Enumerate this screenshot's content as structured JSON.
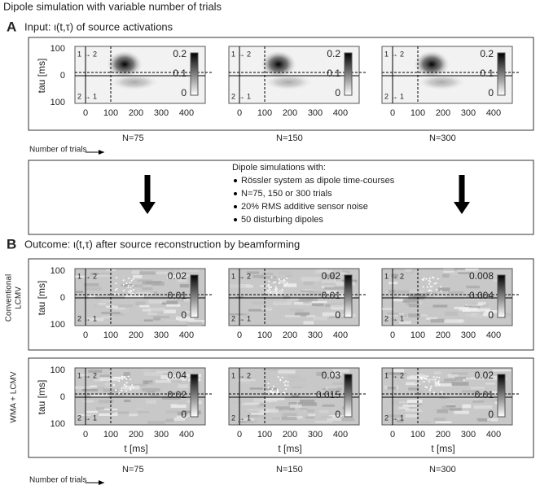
{
  "title": "Dipole simulation with variable number of trials",
  "axes": {
    "tau_label": "tau [ms]",
    "t_label": "t [ms]",
    "x_ticks": [
      "0",
      "100",
      "200",
      "300",
      "400"
    ],
    "y_ticks": [
      "100",
      "0",
      "100"
    ],
    "quadrant_labels": [
      "1 → 2",
      "2 → 1"
    ]
  },
  "trials": {
    "label": "Number of trials",
    "n": [
      "N=75",
      "N=150",
      "N=300"
    ]
  },
  "section_a": {
    "label": "A",
    "heading": "Input: ι(t,τ) of source activations",
    "colorbar_ticks": [
      [
        "0.2",
        "0.1",
        "0"
      ],
      [
        "0.2",
        "0.1",
        "0"
      ],
      [
        "0.2",
        "0.1",
        "0"
      ]
    ]
  },
  "simulation": {
    "heading": "Dipole simulations with:",
    "bullets": [
      "Rössler system as dipole time-courses",
      "N=75, 150 or 300 trials",
      "20% RMS additive sensor noise",
      "50 disturbing dipoles"
    ]
  },
  "section_b": {
    "label": "B",
    "heading": "Outcome: ι(t,τ) after source reconstruction by beamforming",
    "rows": [
      {
        "method": [
          "Conventional",
          "LCMV"
        ],
        "colorbar_ticks": [
          [
            "0.02",
            "0.01",
            "0"
          ],
          [
            "0.02",
            "0.01",
            "0"
          ],
          [
            "0.008",
            "0.004",
            "0"
          ]
        ]
      },
      {
        "method": [
          "WMA + LCMV"
        ],
        "colorbar_ticks": [
          [
            "0.04",
            "0.02",
            "0"
          ],
          [
            "0.03",
            "0.015",
            "0"
          ],
          [
            "0.02",
            "0.01",
            "0"
          ]
        ]
      }
    ]
  }
}
